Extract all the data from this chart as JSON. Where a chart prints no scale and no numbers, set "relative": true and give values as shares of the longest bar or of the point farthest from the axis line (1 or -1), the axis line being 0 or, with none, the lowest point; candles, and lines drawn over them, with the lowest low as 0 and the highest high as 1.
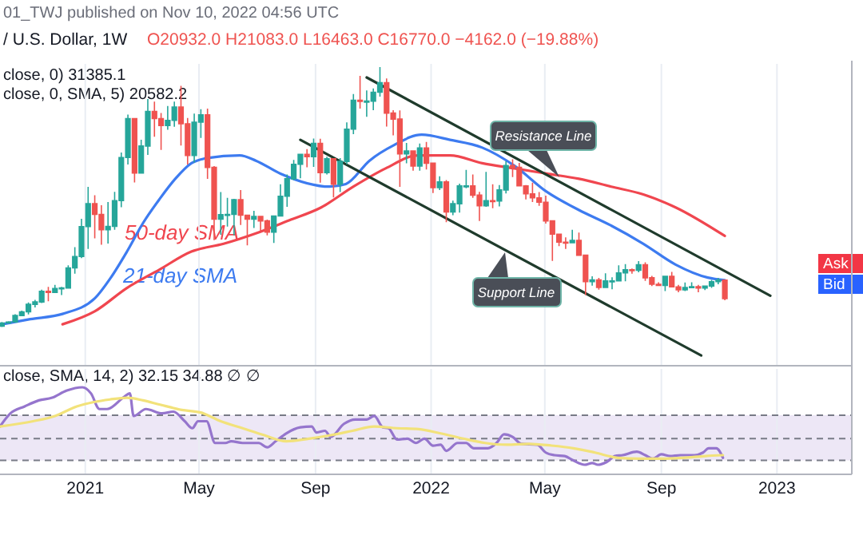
{
  "chart_data": [
    {
      "type": "candlestick",
      "title": "/ U.S. Dollar, 1W",
      "subtitle": "O20932.0 H21083.0 L16463.0 C16770.0 −4162.0 (−19.88%)",
      "annotations": [
        "01_TWJ published on Nov 10, 2022 04:56 UTC",
        "close, 0) 31385.1",
        "close, 0, SMA, 5) 20582.2",
        "Ask",
        "Bid"
      ],
      "relative": true,
      "tick_labels": false,
      "grid": "x",
      "xlim": [
        "2020-10-03",
        "2023-03-21"
      ],
      "xticks": [
        {
          "value": "2021-01-01",
          "label": null
        },
        {
          "value": "2021-05-01",
          "label": null
        },
        {
          "value": "2021-09-01",
          "label": null
        },
        {
          "value": "2022-01-01",
          "label": null
        },
        {
          "value": "2022-05-01",
          "label": null
        },
        {
          "value": "2022-09-01",
          "label": null
        },
        {
          "value": "2023-01-01",
          "label": null
        }
      ],
      "x": [
        "2020-10-05",
        "2020-10-12",
        "2020-10-19",
        "2020-10-26",
        "2020-11-02",
        "2020-11-09",
        "2020-11-16",
        "2020-11-23",
        "2020-11-30",
        "2020-12-07",
        "2020-12-14",
        "2020-12-21",
        "2020-12-28",
        "2021-01-04",
        "2021-01-11",
        "2021-01-18",
        "2021-01-25",
        "2021-02-01",
        "2021-02-08",
        "2021-02-15",
        "2021-02-22",
        "2021-03-01",
        "2021-03-08",
        "2021-03-15",
        "2021-03-22",
        "2021-03-29",
        "2021-04-05",
        "2021-04-12",
        "2021-04-19",
        "2021-04-26",
        "2021-05-03",
        "2021-05-10",
        "2021-05-17",
        "2021-05-24",
        "2021-05-31",
        "2021-06-07",
        "2021-06-14",
        "2021-06-21",
        "2021-06-28",
        "2021-07-05",
        "2021-07-12",
        "2021-07-19",
        "2021-07-26",
        "2021-08-02",
        "2021-08-09",
        "2021-08-16",
        "2021-08-23",
        "2021-08-30",
        "2021-09-06",
        "2021-09-13",
        "2021-09-20",
        "2021-09-27",
        "2021-10-04",
        "2021-10-11",
        "2021-10-18",
        "2021-10-25",
        "2021-11-01",
        "2021-11-08",
        "2021-11-15",
        "2021-11-22",
        "2021-11-29",
        "2021-12-06",
        "2021-12-13",
        "2021-12-20",
        "2021-12-27",
        "2022-01-03",
        "2022-01-10",
        "2022-01-17",
        "2022-01-24",
        "2022-01-31",
        "2022-02-07",
        "2022-02-14",
        "2022-02-21",
        "2022-02-28",
        "2022-03-07",
        "2022-03-14",
        "2022-03-21",
        "2022-03-28",
        "2022-04-04",
        "2022-04-11",
        "2022-04-18",
        "2022-04-25",
        "2022-05-02",
        "2022-05-09",
        "2022-05-16",
        "2022-05-23",
        "2022-05-30",
        "2022-06-06",
        "2022-06-13",
        "2022-06-20",
        "2022-06-27",
        "2022-07-04",
        "2022-07-11",
        "2022-07-18",
        "2022-07-25",
        "2022-08-01",
        "2022-08-08",
        "2022-08-15",
        "2022-08-22",
        "2022-08-29",
        "2022-09-05",
        "2022-09-12",
        "2022-09-19",
        "2022-09-26",
        "2022-10-03",
        "2022-10-10",
        "2022-10-17",
        "2022-10-24",
        "2022-10-31",
        "2022-11-07"
      ],
      "ohlc": [
        [
          0.003,
          0.019,
          0,
          0.015
        ],
        [
          0.015,
          0.022,
          0.014,
          0.019
        ],
        [
          0.019,
          0.049,
          0.017,
          0.044
        ],
        [
          0.044,
          0.063,
          0.043,
          0.058
        ],
        [
          0.058,
          0.094,
          0.048,
          0.087
        ],
        [
          0.087,
          0.104,
          0.075,
          0.096
        ],
        [
          0.096,
          0.143,
          0.092,
          0.137
        ],
        [
          0.137,
          0.154,
          0.099,
          0.133
        ],
        [
          0.133,
          0.162,
          0.13,
          0.148
        ],
        [
          0.148,
          0.154,
          0.123,
          0.15
        ],
        [
          0.15,
          0.237,
          0.147,
          0.227
        ],
        [
          0.227,
          0.307,
          0.205,
          0.271
        ],
        [
          0.271,
          0.416,
          0.265,
          0.386
        ],
        [
          0.386,
          0.539,
          0.3,
          0.474
        ],
        [
          0.474,
          0.507,
          0.341,
          0.433
        ],
        [
          0.433,
          0.468,
          0.316,
          0.374
        ],
        [
          0.374,
          0.481,
          0.321,
          0.387
        ],
        [
          0.387,
          0.52,
          0.374,
          0.486
        ],
        [
          0.486,
          0.671,
          0.461,
          0.652
        ],
        [
          0.652,
          0.817,
          0.625,
          0.802
        ],
        [
          0.802,
          0.804,
          0.556,
          0.592
        ],
        [
          0.592,
          0.72,
          0.59,
          0.696
        ],
        [
          0.696,
          0.877,
          0.662,
          0.829
        ],
        [
          0.829,
          0.867,
          0.732,
          0.802
        ],
        [
          0.802,
          0.823,
          0.681,
          0.775
        ],
        [
          0.775,
          0.85,
          0.759,
          0.795
        ],
        [
          0.795,
          0.867,
          0.77,
          0.846
        ],
        [
          0.846,
          0.928,
          0.698,
          0.782
        ],
        [
          0.782,
          0.804,
          0.625,
          0.66
        ],
        [
          0.66,
          0.821,
          0.633,
          0.788
        ],
        [
          0.788,
          0.838,
          0.727,
          0.816
        ],
        [
          0.816,
          0.84,
          0.57,
          0.614
        ],
        [
          0.614,
          0.619,
          0.334,
          0.415
        ],
        [
          0.415,
          0.519,
          0.355,
          0.432
        ],
        [
          0.432,
          0.497,
          0.386,
          0.433
        ],
        [
          0.433,
          0.493,
          0.352,
          0.49
        ],
        [
          0.49,
          0.527,
          0.392,
          0.43
        ],
        [
          0.43,
          0.432,
          0.314,
          0.415
        ],
        [
          0.415,
          0.447,
          0.381,
          0.425
        ],
        [
          0.425,
          0.425,
          0.37,
          0.408
        ],
        [
          0.408,
          0.413,
          0.352,
          0.365
        ],
        [
          0.365,
          0.427,
          0.323,
          0.427
        ],
        [
          0.427,
          0.549,
          0.425,
          0.503
        ],
        [
          0.503,
          0.587,
          0.462,
          0.57
        ],
        [
          0.57,
          0.643,
          0.565,
          0.626
        ],
        [
          0.626,
          0.666,
          0.572,
          0.664
        ],
        [
          0.664,
          0.684,
          0.614,
          0.655
        ],
        [
          0.655,
          0.725,
          0.616,
          0.706
        ],
        [
          0.706,
          0.724,
          0.555,
          0.594
        ],
        [
          0.594,
          0.655,
          0.587,
          0.647
        ],
        [
          0.647,
          0.648,
          0.498,
          0.549
        ],
        [
          0.549,
          0.65,
          0.519,
          0.637
        ],
        [
          0.637,
          0.787,
          0.626,
          0.761
        ],
        [
          0.761,
          0.896,
          0.742,
          0.872
        ],
        [
          0.872,
          0.966,
          0.84,
          0.869
        ],
        [
          0.869,
          0.91,
          0.809,
          0.869
        ],
        [
          0.869,
          0.918,
          0.834,
          0.903
        ],
        [
          0.903,
          1,
          0.886,
          0.94
        ],
        [
          0.94,
          0.956,
          0.771,
          0.823
        ],
        [
          0.823,
          0.834,
          0.737,
          0.8
        ],
        [
          0.8,
          0.833,
          0.539,
          0.666
        ],
        [
          0.666,
          0.708,
          0.63,
          0.677
        ],
        [
          0.677,
          0.677,
          0.601,
          0.619
        ],
        [
          0.619,
          0.706,
          0.601,
          0.689
        ],
        [
          0.689,
          0.712,
          0.606,
          0.63
        ],
        [
          0.63,
          0.633,
          0.515,
          0.536
        ],
        [
          0.536,
          0.58,
          0.527,
          0.558
        ],
        [
          0.558,
          0.565,
          0.403,
          0.442
        ],
        [
          0.442,
          0.486,
          0.43,
          0.474
        ],
        [
          0.474,
          0.551,
          0.44,
          0.543
        ],
        [
          0.543,
          0.604,
          0.534,
          0.543
        ],
        [
          0.543,
          0.587,
          0.497,
          0.507
        ],
        [
          0.507,
          0.52,
          0.408,
          0.466
        ],
        [
          0.466,
          0.597,
          0.462,
          0.486
        ],
        [
          0.486,
          0.549,
          0.457,
          0.485
        ],
        [
          0.485,
          0.546,
          0.464,
          0.527
        ],
        [
          0.527,
          0.637,
          0.514,
          0.621
        ],
        [
          0.621,
          0.645,
          0.577,
          0.614
        ],
        [
          0.614,
          0.631,
          0.541,
          0.543
        ],
        [
          0.543,
          0.546,
          0.491,
          0.512
        ],
        [
          0.512,
          0.555,
          0.481,
          0.497
        ],
        [
          0.497,
          0.519,
          0.466,
          0.48
        ],
        [
          0.48,
          0.505,
          0.398,
          0.408
        ],
        [
          0.408,
          0.408,
          0.254,
          0.357
        ],
        [
          0.357,
          0.357,
          0.311,
          0.326
        ],
        [
          0.326,
          0.345,
          0.3,
          0.324
        ],
        [
          0.324,
          0.374,
          0.323,
          0.333
        ],
        [
          0.333,
          0.363,
          0.276,
          0.276
        ],
        [
          0.276,
          0.276,
          0.123,
          0.174
        ],
        [
          0.174,
          0.195,
          0.159,
          0.181
        ],
        [
          0.181,
          0.189,
          0.143,
          0.152
        ],
        [
          0.152,
          0.206,
          0.152,
          0.177
        ],
        [
          0.177,
          0.191,
          0.145,
          0.177
        ],
        [
          0.177,
          0.237,
          0.177,
          0.208
        ],
        [
          0.208,
          0.242,
          0.176,
          0.22
        ],
        [
          0.22,
          0.225,
          0.205,
          0.218
        ],
        [
          0.218,
          0.253,
          0.21,
          0.239
        ],
        [
          0.239,
          0.249,
          0.177,
          0.189
        ],
        [
          0.189,
          0.196,
          0.157,
          0.164
        ],
        [
          0.164,
          0.172,
          0.157,
          0.16
        ],
        [
          0.16,
          0.195,
          0.138,
          0.195
        ],
        [
          0.195,
          0.212,
          0.152,
          0.154
        ],
        [
          0.154,
          0.162,
          0.133,
          0.143
        ],
        [
          0.143,
          0.171,
          0.138,
          0.152
        ],
        [
          0.152,
          0.172,
          0.152,
          0.155
        ],
        [
          0.155,
          0.162,
          0.133,
          0.15
        ],
        [
          0.15,
          0.159,
          0.142,
          0.157
        ],
        [
          0.157,
          0.181,
          0.15,
          0.174
        ],
        [
          0.174,
          0.189,
          0.164,
          0.18
        ],
        [
          0.18,
          0.182,
          0.103,
          0.109
        ]
      ],
      "series": [
        {
          "type": "line",
          "name": "50-day SMA",
          "color": "#f0464f",
          "x": [
            "2020-12-08",
            "2021-01-11",
            "2021-02-14",
            "2021-03-20",
            "2021-04-23",
            "2021-05-27",
            "2021-06-30",
            "2021-08-04",
            "2021-09-07",
            "2021-10-11",
            "2021-11-14",
            "2021-12-18",
            "2022-01-21",
            "2022-02-24",
            "2022-03-30",
            "2022-05-03",
            "2022-06-06",
            "2022-07-10",
            "2022-08-13",
            "2022-09-16",
            "2022-11-07"
          ],
          "values": [
            0.01,
            0.06,
            0.15,
            0.22,
            0.29,
            0.32,
            0.36,
            0.41,
            0.46,
            0.54,
            0.61,
            0.66,
            0.66,
            0.63,
            0.61,
            0.59,
            0.57,
            0.54,
            0.51,
            0.46,
            0.35
          ]
        },
        {
          "type": "line",
          "name": "21-day SMA",
          "color": "#3d7bf0",
          "x": [
            "2020-10-05",
            "2020-11-04",
            "2020-12-08",
            "2021-01-11",
            "2021-01-28",
            "2021-02-14",
            "2021-03-03",
            "2021-03-20",
            "2021-04-06",
            "2021-04-23",
            "2021-05-10",
            "2021-06-13",
            "2021-06-30",
            "2021-07-26",
            "2021-09-16",
            "2021-10-03",
            "2021-10-28",
            "2021-11-23",
            "2021-12-22",
            "2022-01-21",
            "2022-02-24",
            "2022-03-30",
            "2022-05-03",
            "2022-06-06",
            "2022-07-10",
            "2022-08-13",
            "2022-09-16",
            "2022-10-20",
            "2022-11-07"
          ],
          "values": [
            0.01,
            0.03,
            0.05,
            0.11,
            0.19,
            0.29,
            0.4,
            0.49,
            0.57,
            0.63,
            0.65,
            0.66,
            0.64,
            0.59,
            0.54,
            0.55,
            0.64,
            0.7,
            0.74,
            0.72,
            0.69,
            0.62,
            0.52,
            0.45,
            0.39,
            0.32,
            0.24,
            0.19,
            0.18
          ]
        },
        {
          "type": "line",
          "name": "Resistance Line",
          "color": "#1f3b2c",
          "x": [
            "2021-10-25",
            "2022-12-25"
          ],
          "values": [
            0.96,
            0.12
          ]
        },
        {
          "type": "line",
          "name": "Support Line",
          "color": "#1f3b2c",
          "x": [
            "2021-08-16",
            "2022-10-13"
          ],
          "values": [
            0.72,
            -0.11
          ]
        }
      ]
    },
    {
      "type": "line",
      "annotations": [
        "close, SMA, 14, 2) 32.15 34.88 ∅ ∅"
      ],
      "relative": true,
      "tick_labels": "x",
      "grid": "x",
      "xlim": [
        "2020-10-03",
        "2023-03-21"
      ],
      "xticks": [
        {
          "value": "2021-01-01",
          "label": "2021"
        },
        {
          "value": "2021-05-01",
          "label": "May"
        },
        {
          "value": "2021-09-01",
          "label": "Sep"
        },
        {
          "value": "2022-01-01",
          "label": "2022"
        },
        {
          "value": "2022-05-01",
          "label": "May"
        },
        {
          "value": "2022-09-01",
          "label": "Sep"
        },
        {
          "value": "2023-01-01",
          "label": "2023"
        }
      ],
      "bands": [
        {
          "axis": "y",
          "from": 0.16,
          "to": 0.68,
          "color": "#ede7f6"
        }
      ],
      "ref_lines": [
        {
          "axis": "y",
          "value": 0.16,
          "line_style": "dashed",
          "color": "#787b86"
        },
        {
          "axis": "y",
          "value": 0.41,
          "line_style": "dashed",
          "color": "#787b86"
        },
        {
          "axis": "y",
          "value": 0.68,
          "line_style": "dashed",
          "color": "#787b86"
        }
      ],
      "series": [
        {
          "color": "#9575cd",
          "x": [
            "2020-10-03",
            "2020-10-14",
            "2020-10-29",
            "2020-11-13",
            "2020-11-27",
            "2020-12-12",
            "2020-12-29",
            "2021-01-07",
            "2021-01-16",
            "2021-01-24",
            "2021-02-11",
            "2021-02-17",
            "2021-02-21",
            "2021-03-06",
            "2021-03-23",
            "2021-04-04",
            "2021-04-16",
            "2021-04-24",
            "2021-04-30",
            "2021-05-09",
            "2021-05-18",
            "2021-05-29",
            "2021-06-04",
            "2021-06-16",
            "2021-07-03",
            "2021-07-12",
            "2021-07-21",
            "2021-08-01",
            "2021-08-16",
            "2021-08-28",
            "2021-09-02",
            "2021-09-11",
            "2021-09-17",
            "2021-10-01",
            "2021-10-13",
            "2021-10-25",
            "2021-11-02",
            "2021-11-11",
            "2021-11-17",
            "2021-11-26",
            "2021-12-07",
            "2021-12-16",
            "2021-12-25",
            "2022-01-03",
            "2022-01-11",
            "2022-01-17",
            "2022-01-29",
            "2022-02-07",
            "2022-02-15",
            "2022-03-02",
            "2022-03-11",
            "2022-03-19",
            "2022-03-28",
            "2022-04-06",
            "2022-04-23",
            "2022-05-02",
            "2022-05-11",
            "2022-05-22",
            "2022-05-31",
            "2022-06-12",
            "2022-06-20",
            "2022-06-26",
            "2022-07-05",
            "2022-07-14",
            "2022-07-22",
            "2022-08-06",
            "2022-08-15",
            "2022-08-23",
            "2022-09-01",
            "2022-09-10",
            "2022-09-21",
            "2022-10-06",
            "2022-10-15",
            "2022-10-21",
            "2022-10-29",
            "2022-11-05"
          ],
          "values": [
            0.55,
            0.7,
            0.78,
            0.85,
            0.88,
            0.96,
            1.0,
            0.93,
            0.75,
            0.75,
            0.89,
            0.93,
            0.67,
            0.75,
            0.7,
            0.72,
            0.61,
            0.53,
            0.61,
            0.61,
            0.36,
            0.36,
            0.38,
            0.36,
            0.36,
            0.31,
            0.38,
            0.47,
            0.54,
            0.55,
            0.48,
            0.5,
            0.43,
            0.58,
            0.63,
            0.63,
            0.67,
            0.54,
            0.53,
            0.4,
            0.41,
            0.36,
            0.41,
            0.33,
            0.34,
            0.27,
            0.36,
            0.36,
            0.3,
            0.3,
            0.36,
            0.46,
            0.43,
            0.35,
            0.34,
            0.25,
            0.22,
            0.21,
            0.16,
            0.11,
            0.13,
            0.11,
            0.14,
            0.21,
            0.22,
            0.26,
            0.22,
            0.18,
            0.23,
            0.21,
            0.22,
            0.22,
            0.25,
            0.3,
            0.3,
            0.19
          ]
        },
        {
          "color": "#f2e27a",
          "x": [
            "2020-10-03",
            "2020-11-07",
            "2020-11-30",
            "2020-12-23",
            "2021-01-10",
            "2021-01-27",
            "2021-02-14",
            "2021-03-03",
            "2021-03-21",
            "2021-04-13",
            "2021-05-03",
            "2021-05-24",
            "2021-06-16",
            "2021-07-09",
            "2021-08-01",
            "2021-08-25",
            "2021-09-17",
            "2021-10-10",
            "2021-11-02",
            "2021-11-26",
            "2021-12-19",
            "2022-01-11",
            "2022-02-04",
            "2022-02-27",
            "2022-03-22",
            "2022-04-14",
            "2022-05-08",
            "2022-05-31",
            "2022-06-23",
            "2022-07-17",
            "2022-08-09",
            "2022-09-01",
            "2022-09-24",
            "2022-10-18",
            "2022-11-05"
          ],
          "values": [
            0.55,
            0.61,
            0.67,
            0.78,
            0.83,
            0.86,
            0.88,
            0.85,
            0.8,
            0.74,
            0.71,
            0.61,
            0.53,
            0.45,
            0.38,
            0.41,
            0.45,
            0.5,
            0.55,
            0.53,
            0.52,
            0.47,
            0.41,
            0.36,
            0.34,
            0.35,
            0.33,
            0.3,
            0.25,
            0.19,
            0.18,
            0.18,
            0.19,
            0.21,
            0.22
          ]
        }
      ]
    }
  ]
}
